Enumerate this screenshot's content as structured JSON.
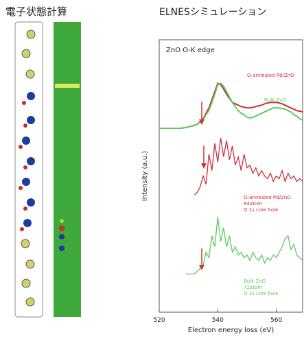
{
  "headers": {
    "left": "電子状態計算",
    "right": "ELNESシミュレーション"
  },
  "chart_data": {
    "type": "line",
    "annotation": "ZnO O-K edge",
    "xlabel": "Electron energy loss (eV)",
    "ylabel": "Intensity (a.u.)",
    "x": [
      520,
      521,
      522,
      523,
      524,
      525,
      526,
      527,
      528,
      529,
      530,
      531,
      532,
      533,
      534,
      535,
      536,
      537,
      538,
      539,
      540,
      541,
      542,
      543,
      544,
      545,
      546,
      547,
      548,
      549,
      550,
      551,
      552,
      553,
      554,
      555,
      556,
      557,
      558,
      559,
      560,
      561,
      562,
      563,
      564,
      565,
      566,
      567,
      568,
      569
    ],
    "xlim": [
      520,
      569
    ],
    "xticks": [
      520,
      540,
      560
    ],
    "ylim": [
      0,
      100
    ],
    "series": [
      {
        "name": "O-annealed Pd/ZnO",
        "color": "#c8303c",
        "values": [
          67.5,
          67.5,
          67.5,
          67.5,
          67.5,
          67.5,
          67.5,
          67.5,
          67.6,
          67.8,
          68,
          68.3,
          68.6,
          69,
          70,
          71,
          73,
          75,
          78,
          81,
          84,
          83.5,
          82,
          80,
          78.5,
          77,
          76.5,
          76,
          75.5,
          75.3,
          75,
          75,
          75.2,
          75.5,
          75.8,
          76,
          76.5,
          76.8,
          77,
          77,
          77,
          76.8,
          76.5,
          76,
          75.5,
          75,
          74.5,
          74,
          73.8,
          73.5
        ]
      },
      {
        "name": "Bulk ZnO",
        "color": "#5ccc5c",
        "values": [
          67.5,
          67.5,
          67.5,
          67.5,
          67.5,
          67.5,
          67.5,
          67.5,
          67.6,
          67.8,
          68,
          68.2,
          68.5,
          69,
          69.8,
          70.5,
          72.5,
          74,
          77,
          80,
          83.5,
          84,
          83,
          81,
          79,
          77,
          75.5,
          74,
          73,
          72.5,
          71.5,
          71.3,
          71.5,
          72,
          72.5,
          73,
          73.5,
          74,
          74.5,
          75,
          75,
          75,
          74.8,
          74.5,
          74,
          73.5,
          72.5,
          72,
          71,
          70.5
        ]
      },
      {
        "name": "O-annealed Pd/ZnO",
        "note": [
          "84atom",
          "O 1s core hole"
        ],
        "color": "#c8303c",
        "values": [
          null,
          null,
          null,
          null,
          null,
          null,
          null,
          null,
          null,
          null,
          null,
          null,
          43,
          44,
          46,
          50,
          47,
          58,
          52,
          62,
          55,
          64,
          57,
          63,
          56,
          61,
          54,
          57,
          52,
          58,
          53,
          54,
          51,
          53,
          50,
          52,
          50,
          49,
          51,
          48,
          50,
          49,
          52,
          48,
          51,
          49,
          50,
          48,
          49,
          48
        ]
      },
      {
        "name": "Bulk ZnO",
        "note": [
          "72atom",
          "O 1s core hole"
        ],
        "color": "#5ccc5c",
        "values": [
          null,
          null,
          null,
          null,
          null,
          null,
          null,
          null,
          null,
          14,
          14,
          14,
          14,
          15,
          16,
          17,
          22,
          20,
          28,
          24,
          35,
          26,
          31,
          24,
          28,
          22,
          24,
          21,
          22,
          20,
          21,
          19,
          22,
          20,
          19,
          21,
          18,
          20,
          19,
          21,
          20,
          22,
          24,
          27,
          28,
          23,
          25,
          21,
          20,
          19
        ]
      }
    ]
  }
}
